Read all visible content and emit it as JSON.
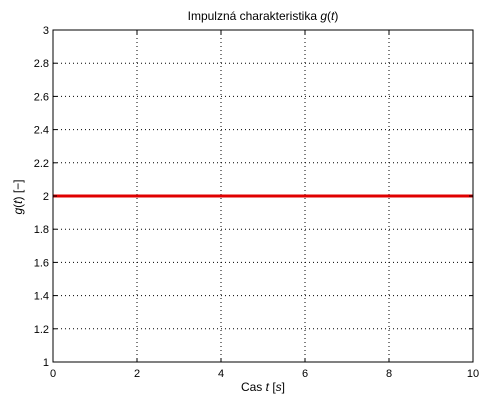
{
  "chart_data": {
    "type": "line",
    "title_parts": [
      "Impulzná charakteristika ",
      "g",
      "(",
      "t",
      ")"
    ],
    "xlabel_parts": [
      "Cas ",
      "t",
      " [",
      "s",
      "]"
    ],
    "ylabel_parts": [
      "g",
      "(",
      "t",
      ")  [−]"
    ],
    "xlim": [
      0,
      10
    ],
    "ylim": [
      1,
      3
    ],
    "xticks": [
      0,
      2,
      4,
      6,
      8,
      10
    ],
    "yticks": [
      1,
      1.2,
      1.4,
      1.6,
      1.8,
      2,
      2.2,
      2.4,
      2.6,
      2.8,
      3
    ],
    "xtick_labels": [
      "0",
      "2",
      "4",
      "6",
      "8",
      "10"
    ],
    "ytick_labels": [
      "1",
      "1.2",
      "1.4",
      "1.6",
      "1.8",
      "2",
      "2.2",
      "2.4",
      "2.6",
      "2.8",
      "3"
    ],
    "grid": true,
    "series": [
      {
        "color": "#e00000",
        "x": [
          0,
          10
        ],
        "y": [
          2,
          2
        ]
      }
    ]
  }
}
